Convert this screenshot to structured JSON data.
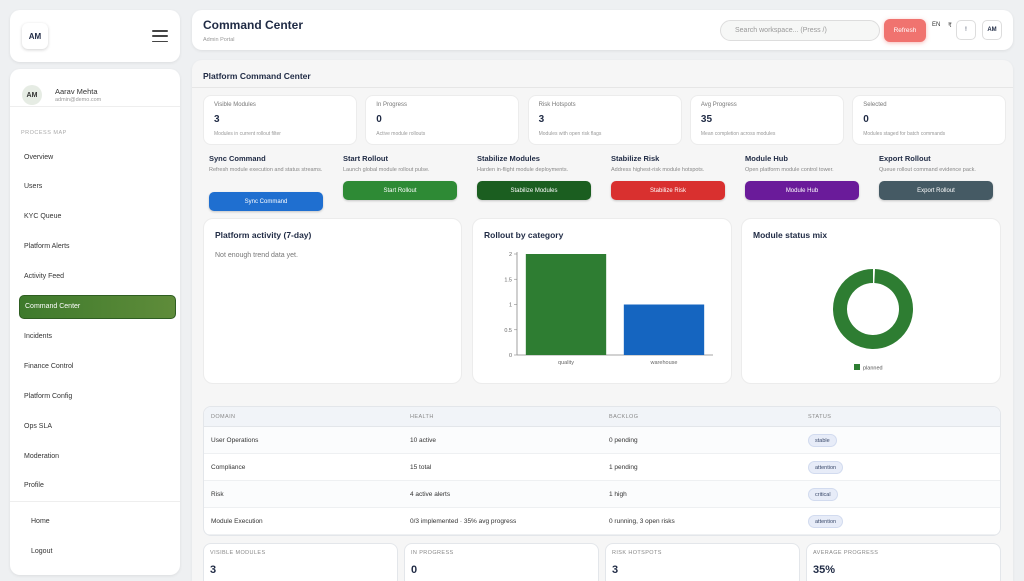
{
  "brand": {
    "logo_text": "AM"
  },
  "user": {
    "initials": "AM",
    "name": "Aarav Mehta",
    "email": "admin@demo.com"
  },
  "sidebar": {
    "section_label": "PROCESS MAP",
    "items": [
      {
        "label": "Overview"
      },
      {
        "label": "Users"
      },
      {
        "label": "KYC Queue"
      },
      {
        "label": "Platform Alerts"
      },
      {
        "label": "Activity Feed"
      },
      {
        "label": "Command Center",
        "active": true
      },
      {
        "label": "Incidents"
      },
      {
        "label": "Finance Control"
      },
      {
        "label": "Platform Config"
      },
      {
        "label": "Ops SLA"
      },
      {
        "label": "Moderation"
      },
      {
        "label": "Profile"
      }
    ],
    "footer_items": [
      {
        "label": "Home"
      },
      {
        "label": "Logout"
      }
    ]
  },
  "header": {
    "title": "Command Center",
    "subtitle": "Admin Portal",
    "search_placeholder": "Search workspace... (Press /)",
    "refresh_label": "Refresh",
    "lang": "EN",
    "currency": "₹",
    "notif_label": "!",
    "avatar": "AM"
  },
  "main": {
    "title": "Platform Command Center",
    "stats": [
      {
        "label": "Visible Modules",
        "value": "3",
        "hint": "Modules in current rollout filter"
      },
      {
        "label": "In Progress",
        "value": "0",
        "hint": "Active module rollouts"
      },
      {
        "label": "Risk Hotspots",
        "value": "3",
        "hint": "Modules with open risk flags"
      },
      {
        "label": "Avg Progress",
        "value": "35",
        "hint": "Mean completion across modules"
      },
      {
        "label": "Selected",
        "value": "0",
        "hint": "Modules staged for batch commands"
      }
    ],
    "actions": [
      {
        "title": "Sync Command",
        "desc": "Refresh module execution and status streams.",
        "button": "Sync Command",
        "color": "#1f6fd0"
      },
      {
        "title": "Start Rollout",
        "desc": "Launch global module rollout pulse.",
        "button": "Start Rollout",
        "color": "#2e8a35"
      },
      {
        "title": "Stabilize Modules",
        "desc": "Harden in-flight module deployments.",
        "button": "Stabilize Modules",
        "color": "#1b5e20"
      },
      {
        "title": "Stabilize Risk",
        "desc": "Address highest-risk module hotspots.",
        "button": "Stabilize Risk",
        "color": "#d9302f"
      },
      {
        "title": "Module Hub",
        "desc": "Open platform module control tower.",
        "button": "Module Hub",
        "color": "#6a1b9a"
      },
      {
        "title": "Export Rollout",
        "desc": "Queue rollout command evidence pack.",
        "button": "Export Rollout",
        "color": "#455a64"
      }
    ],
    "activity": {
      "title": "Platform activity (7-day)",
      "empty": "Not enough trend data yet."
    },
    "rollout_title": "Rollout by category",
    "status_mix_title": "Module status mix",
    "table": {
      "headers": [
        "DOMAIN",
        "HEALTH",
        "BACKLOG",
        "STATUS"
      ],
      "rows": [
        {
          "domain": "User Operations",
          "health": "10 active",
          "backlog": "0 pending",
          "status": "stable"
        },
        {
          "domain": "Compliance",
          "health": "15 total",
          "backlog": "1 pending",
          "status": "attention"
        },
        {
          "domain": "Risk",
          "health": "4 active alerts",
          "backlog": "1 high",
          "status": "critical"
        },
        {
          "domain": "Module Execution",
          "health": "0/3 implemented · 35% avg progress",
          "backlog": "0 running, 3 open risks",
          "status": "attention"
        }
      ]
    },
    "bottom_stats": [
      {
        "label": "VISIBLE MODULES",
        "value": "3"
      },
      {
        "label": "IN PROGRESS",
        "value": "0"
      },
      {
        "label": "RISK HOTSPOTS",
        "value": "3"
      },
      {
        "label": "AVERAGE PROGRESS",
        "value": "35%"
      }
    ]
  },
  "chart_data": [
    {
      "type": "bar",
      "title": "Rollout by category",
      "categories": [
        "quality",
        "warehouse"
      ],
      "values": [
        2,
        1
      ],
      "colors": [
        "#2e7d32",
        "#1565c0"
      ],
      "yticks": [
        "0",
        "0.5",
        "1",
        "1.5",
        "2"
      ],
      "ylim": [
        0,
        2
      ],
      "grid": false
    },
    {
      "type": "pie",
      "title": "Module status mix",
      "labels": [
        "planned"
      ],
      "values": [
        3
      ],
      "colors": [
        "#2e7d32"
      ],
      "legend": "bottom"
    }
  ]
}
